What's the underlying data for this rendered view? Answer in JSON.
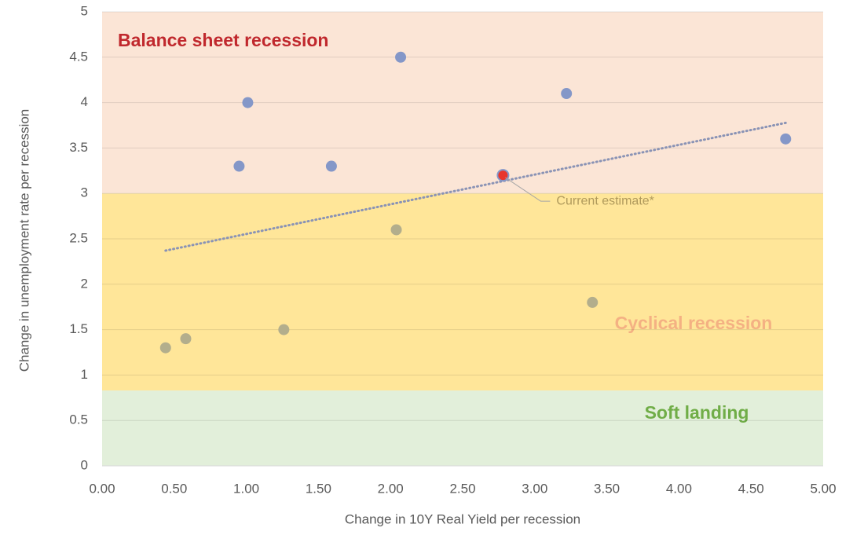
{
  "chart_data": {
    "type": "scatter",
    "x_label": "Change in 10Y Real Yield per recession",
    "y_label": "Change in unemployment rate per recession",
    "xlim": [
      0,
      5
    ],
    "ylim": [
      0,
      5
    ],
    "xticks": [
      {
        "value": 0,
        "label": "0.00"
      },
      {
        "value": 0.5,
        "label": "0.50"
      },
      {
        "value": 1,
        "label": "1.00"
      },
      {
        "value": 1.5,
        "label": "1.50"
      },
      {
        "value": 2,
        "label": "2.00"
      },
      {
        "value": 2.5,
        "label": "2.50"
      },
      {
        "value": 3,
        "label": "3.00"
      },
      {
        "value": 3.5,
        "label": "3.50"
      },
      {
        "value": 4,
        "label": "4.00"
      },
      {
        "value": 4.5,
        "label": "4.50"
      },
      {
        "value": 5,
        "label": "5.00"
      }
    ],
    "yticks": [
      0,
      0.5,
      1,
      1.5,
      2,
      2.5,
      3,
      3.5,
      4,
      4.5,
      5
    ],
    "grid": true,
    "bands": [
      {
        "label": "Soft landing",
        "from": 0,
        "to": 0.83,
        "color": "#e2efda",
        "label_color": "#70ad47"
      },
      {
        "label": "Cyclical recession",
        "from": 0.83,
        "to": 3,
        "color": "#ffe699",
        "label_color": "#f4b183"
      },
      {
        "label": "Balance sheet recession",
        "from": 3,
        "to": 5,
        "color": "#fbe5d6",
        "label_color": "#c0282d"
      }
    ],
    "series": [
      {
        "color": "#8497c8",
        "x": [
          0.95,
          1.01,
          1.59,
          2.07,
          3.22,
          4.74
        ],
        "values": [
          3.3,
          4.0,
          3.3,
          4.5,
          4.1,
          3.6
        ]
      },
      {
        "color": "#b3ae8c",
        "x": [
          0.44,
          0.58,
          1.26,
          2.04,
          3.4
        ],
        "values": [
          1.3,
          1.4,
          1.5,
          2.6,
          1.8
        ]
      },
      {
        "color": "#e8352c",
        "x": [
          2.78
        ],
        "values": [
          3.2
        ]
      }
    ],
    "trendline": {
      "x": [
        0.44,
        4.75
      ],
      "values": [
        2.37,
        3.78
      ]
    },
    "annotation": "Current estimate*"
  }
}
